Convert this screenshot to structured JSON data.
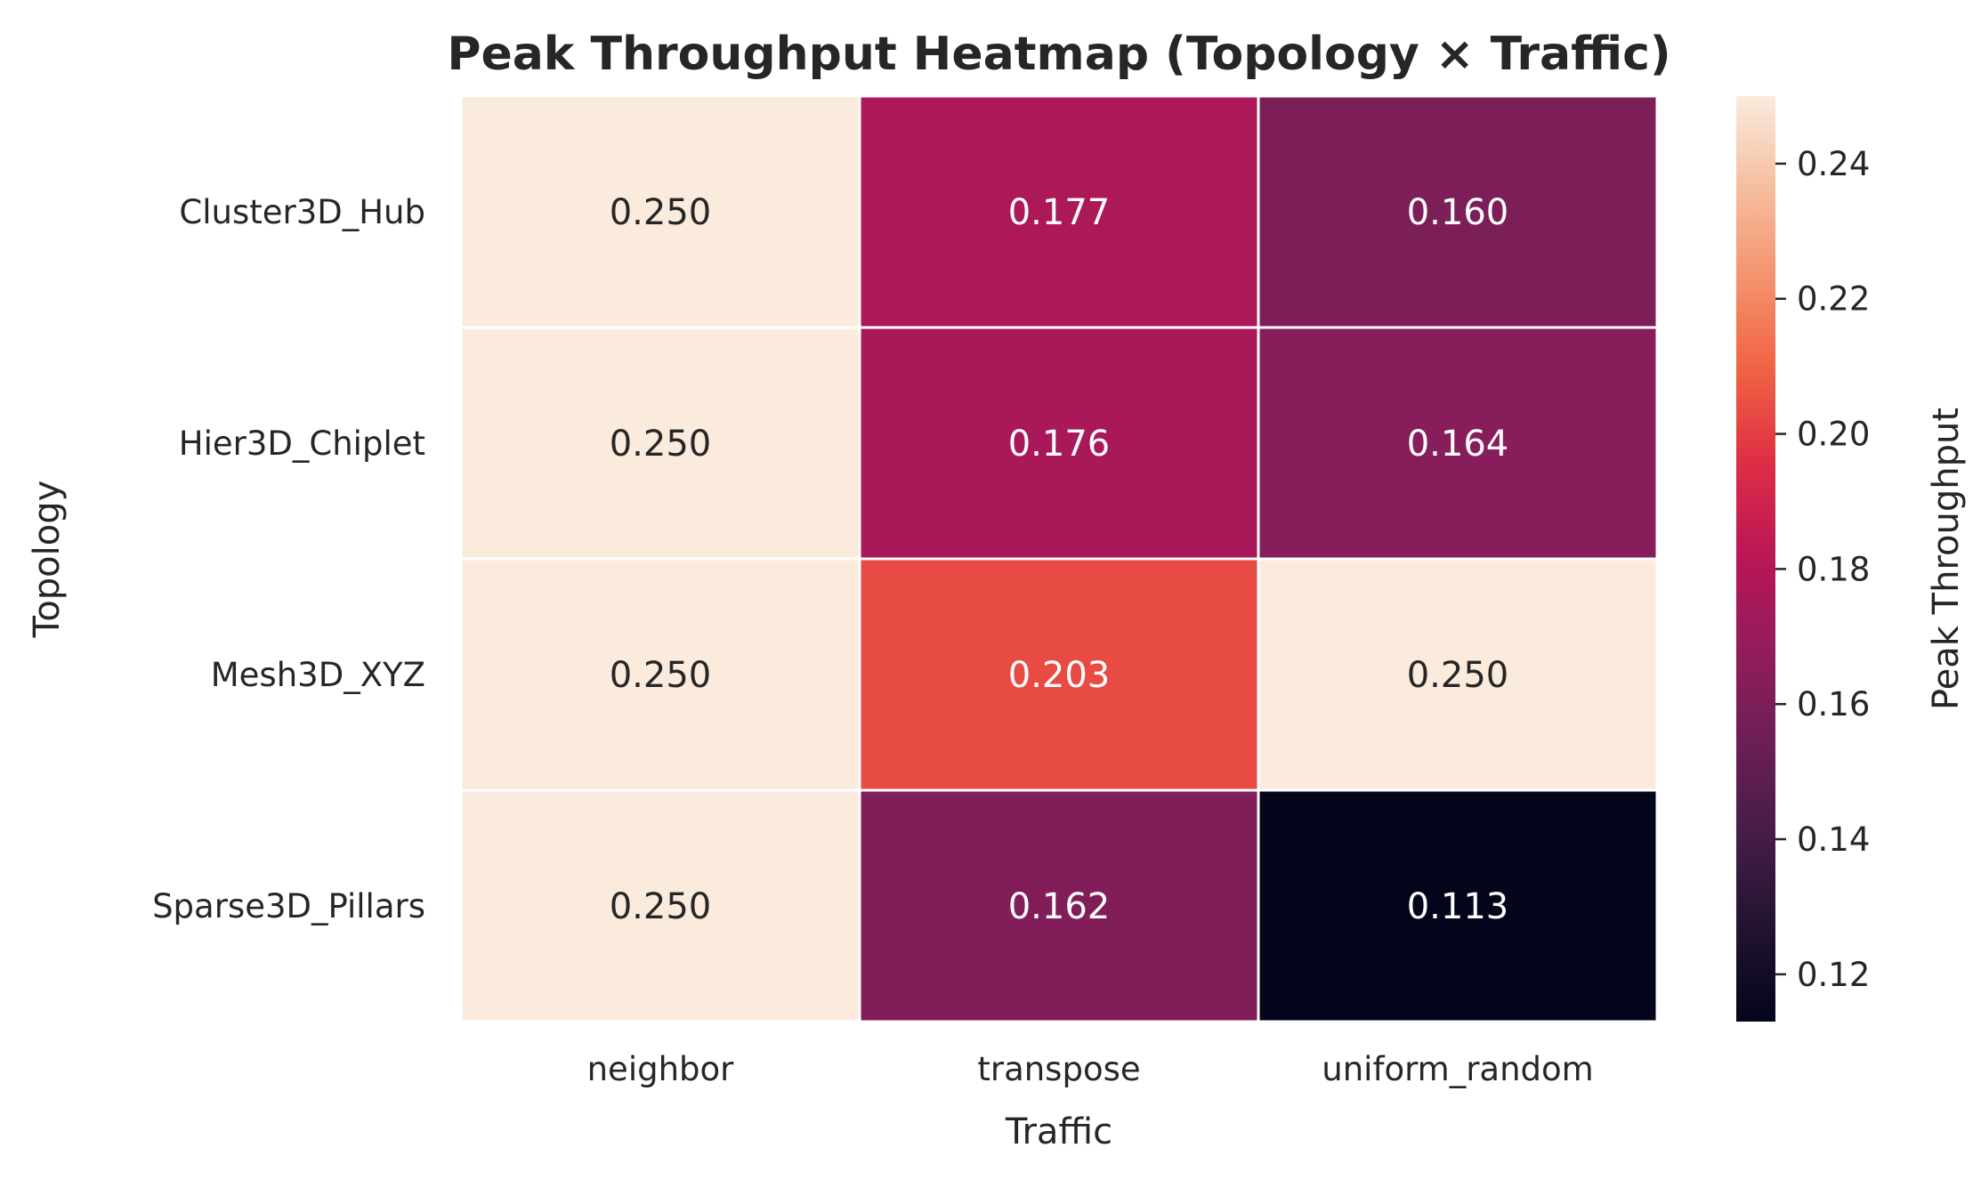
{
  "chart_data": {
    "type": "heatmap",
    "title": "Peak Throughput Heatmap (Topology × Traffic)",
    "xlabel": "Traffic",
    "ylabel": "Topology",
    "x_categories": [
      "neighbor",
      "transpose",
      "uniform_random"
    ],
    "y_categories": [
      "Cluster3D_Hub",
      "Hier3D_Chiplet",
      "Mesh3D_XYZ",
      "Sparse3D_Pillars"
    ],
    "values": [
      [
        0.25,
        0.177,
        0.16
      ],
      [
        0.25,
        0.176,
        0.164
      ],
      [
        0.25,
        0.203,
        0.25
      ],
      [
        0.25,
        0.162,
        0.113
      ]
    ],
    "cell_labels": [
      [
        "0.250",
        "0.177",
        "0.160"
      ],
      [
        "0.250",
        "0.176",
        "0.164"
      ],
      [
        "0.250",
        "0.203",
        "0.250"
      ],
      [
        "0.250",
        "0.162",
        "0.113"
      ]
    ],
    "colorbar": {
      "label": "Peak Throughput",
      "range": [
        0.113,
        0.25
      ],
      "ticks": [
        0.12,
        0.14,
        0.16,
        0.18,
        0.2,
        0.22,
        0.24
      ],
      "tick_labels": [
        "0.12",
        "0.14",
        "0.16",
        "0.18",
        "0.20",
        "0.22",
        "0.24"
      ],
      "colormap": "rocket"
    },
    "grid": false,
    "cell_border_color": "#ffffff"
  }
}
